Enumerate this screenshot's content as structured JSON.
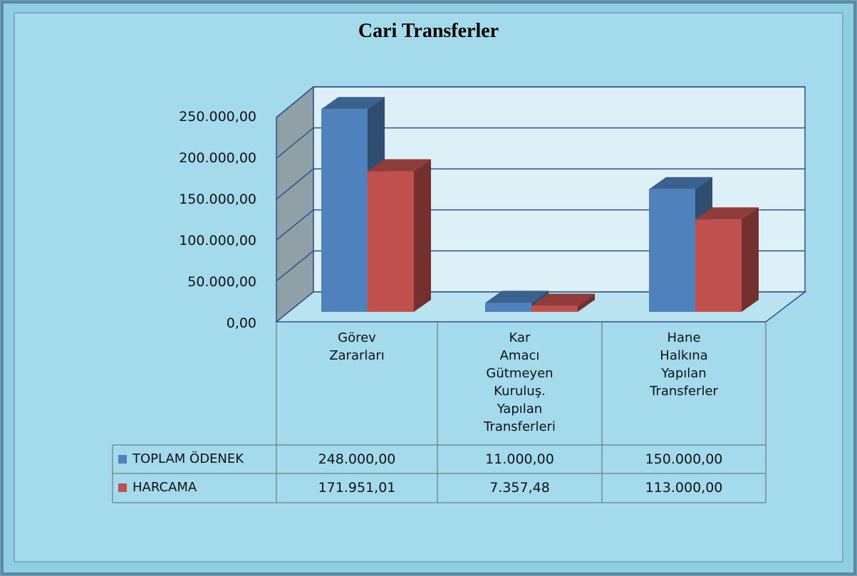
{
  "chart_data": {
    "type": "bar3d",
    "title": "Cari Transferler",
    "categories": [
      "Görev Zararları",
      "Kar Amacı Gütmeyen Kuruluş. Yapılan Transferleri",
      "Hane Halkına Yapılan Transferler"
    ],
    "series": [
      {
        "name": "TOPLAM ÖDENEK",
        "color": "#4f81bd",
        "values": [
          248000,
          11000,
          150000
        ],
        "value_labels": [
          "248.000,00",
          "11.000,00",
          "150.000,00"
        ]
      },
      {
        "name": "HARCAMA",
        "color": "#c0504d",
        "values": [
          171951.01,
          7357.48,
          113000
        ],
        "value_labels": [
          "171.951,01",
          "7.357,48",
          "113.000,00"
        ]
      }
    ],
    "ylim": [
      0,
      250000
    ],
    "yticks": [
      {
        "value": 0,
        "label": "0,00"
      },
      {
        "value": 50000,
        "label": "50.000,00"
      },
      {
        "value": 100000,
        "label": "100.000,00"
      },
      {
        "value": 150000,
        "label": "150.000,00"
      },
      {
        "value": 200000,
        "label": "200.000,00"
      },
      {
        "value": 250000,
        "label": "250.000,00"
      }
    ],
    "grid": true,
    "data_table": true
  }
}
